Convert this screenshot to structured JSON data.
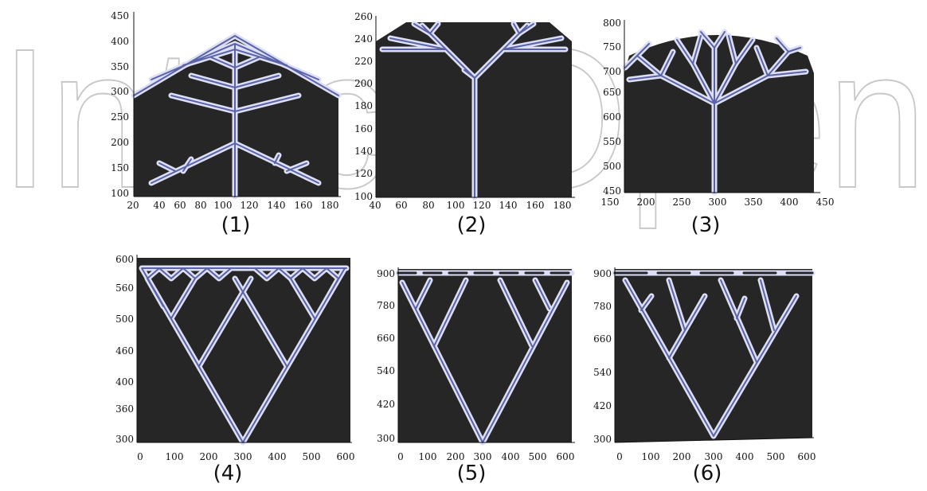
{
  "watermark": "IntechOpen",
  "colors": {
    "field": "#262626",
    "branch_fill": "#dcdff5",
    "branch_core": "#5b63a8",
    "sprout": "#f4c7a4"
  },
  "panels": [
    {
      "caption": "(1)",
      "xticks": [
        "20",
        "40",
        "60",
        "80",
        "100",
        "120",
        "140",
        "160",
        "180"
      ],
      "yticks": [
        "100",
        "150",
        "200",
        "250",
        "300",
        "350",
        "400",
        "450"
      ]
    },
    {
      "caption": "(2)",
      "xticks": [
        "40",
        "60",
        "80",
        "100",
        "120",
        "140",
        "160",
        "180"
      ],
      "yticks": [
        "100",
        "120",
        "140",
        "160",
        "180",
        "200",
        "220",
        "240",
        "260"
      ]
    },
    {
      "caption": "(3)",
      "xticks": [
        "150",
        "200",
        "250",
        "300",
        "350",
        "400",
        "450"
      ],
      "yticks": [
        "450",
        "500",
        "550",
        "600",
        "650",
        "700",
        "750",
        "800"
      ]
    },
    {
      "caption": "(4)",
      "xticks": [
        "0",
        "100",
        "200",
        "300",
        "400",
        "500",
        "600"
      ],
      "yticks": [
        "300",
        "360",
        "400",
        "460",
        "500",
        "560",
        "600"
      ]
    },
    {
      "caption": "(5)",
      "xticks": [
        "0",
        "100",
        "200",
        "300",
        "400",
        "500",
        "600"
      ],
      "yticks": [
        "300",
        "420",
        "540",
        "660",
        "780",
        "900"
      ]
    },
    {
      "caption": "(6)",
      "xticks": [
        "0",
        "100",
        "200",
        "300",
        "400",
        "500",
        "600"
      ],
      "yticks": [
        "300",
        "420",
        "540",
        "660",
        "780",
        "900"
      ]
    }
  ]
}
